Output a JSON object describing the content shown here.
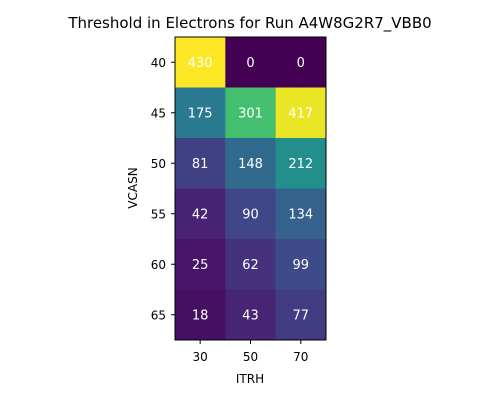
{
  "chart_data": {
    "type": "heatmap",
    "title": "Threshold in Electrons for Run A4W8G2R7_VBB0",
    "xlabel": "ITRH",
    "ylabel": "VCASN",
    "x_categories": [
      "30",
      "50",
      "70"
    ],
    "y_categories": [
      "40",
      "45",
      "50",
      "55",
      "60",
      "65"
    ],
    "values": [
      [
        430,
        0,
        0
      ],
      [
        175,
        301,
        417
      ],
      [
        81,
        148,
        212
      ],
      [
        42,
        90,
        134
      ],
      [
        25,
        62,
        99
      ],
      [
        18,
        43,
        77
      ]
    ],
    "value_range": [
      0,
      430
    ],
    "colormap": "viridis",
    "cell_label_color": "#ffffff"
  }
}
